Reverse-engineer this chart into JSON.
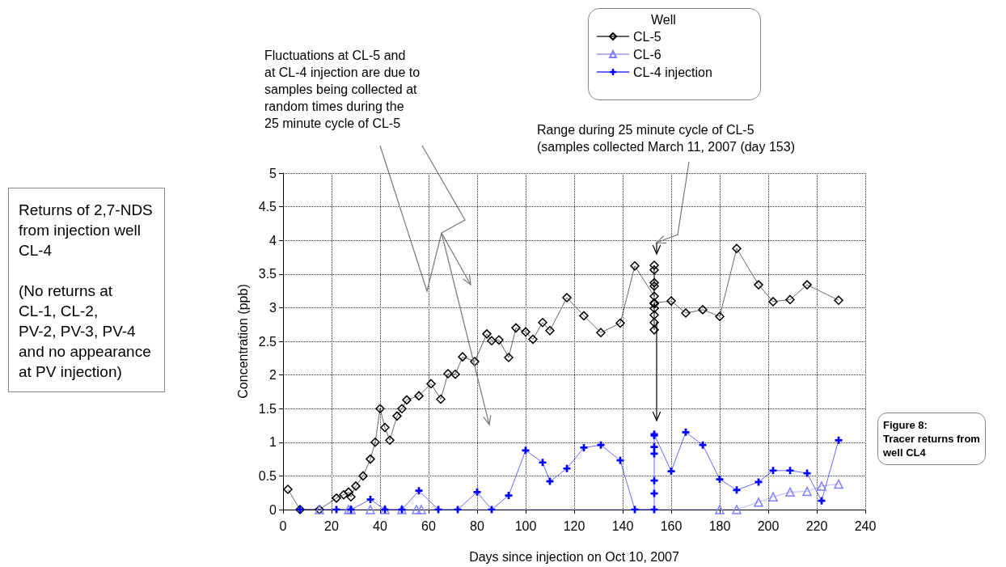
{
  "chart_data": {
    "type": "line",
    "xlabel": "Days since injection on Oct 10, 2007",
    "ylabel": "Concentration (ppb)",
    "legend_title": "Well",
    "legend": "top",
    "grid": true,
    "xlim": [
      0,
      240
    ],
    "xticks": [
      0,
      20,
      40,
      60,
      80,
      100,
      120,
      140,
      160,
      180,
      200,
      220,
      240
    ],
    "ylim": [
      0,
      5
    ],
    "yticks": [
      0,
      0.5,
      1,
      1.5,
      2,
      2.5,
      3,
      3.5,
      4,
      4.5,
      5
    ],
    "series": [
      {
        "name": "CL-5",
        "color": "#000000",
        "marker": "diamond",
        "x": [
          2,
          7,
          15,
          22,
          25,
          27,
          28,
          30,
          33,
          36,
          38,
          40,
          42,
          44,
          47,
          49,
          51,
          56,
          61,
          65,
          68,
          71,
          74,
          79,
          84,
          86,
          89,
          93,
          96,
          100,
          103,
          107,
          110,
          117,
          124,
          131,
          139,
          145,
          153,
          153,
          153,
          153,
          153,
          153,
          153,
          153,
          153,
          153,
          153,
          160,
          166,
          173,
          180,
          187,
          196,
          202,
          209,
          216,
          229
        ],
        "values": [
          0.3,
          0,
          0,
          0.17,
          0.22,
          0.26,
          0.19,
          0.35,
          0.5,
          0.75,
          1,
          1.5,
          1.22,
          1.03,
          1.39,
          1.5,
          1.63,
          1.69,
          1.87,
          1.64,
          2.02,
          2.01,
          2.27,
          2.2,
          2.61,
          2.51,
          2.52,
          2.26,
          2.7,
          2.64,
          2.53,
          2.78,
          2.66,
          3.15,
          2.88,
          2.63,
          2.77,
          3.62,
          3.17,
          3.63,
          3.56,
          3.37,
          3.32,
          2.67,
          2.78,
          2.89,
          2.99,
          3.06,
          3.07,
          3.1,
          2.92,
          2.97,
          2.87,
          3.88,
          3.34,
          3.09,
          3.12,
          3.34,
          3.11
        ]
      },
      {
        "name": "CL-6",
        "color": "#7f7fff",
        "marker": "triangle",
        "x": [
          15,
          27,
          28,
          36,
          42,
          49,
          55,
          57,
          180,
          187,
          196,
          202,
          209,
          216,
          222,
          229
        ],
        "values": [
          0,
          0,
          0,
          0,
          0,
          0,
          0,
          0,
          0,
          0,
          0.11,
          0.19,
          0.26,
          0.27,
          0.35,
          0.38
        ]
      },
      {
        "name": "CL-4 injection",
        "color": "#0000ff",
        "marker": "cross",
        "x": [
          7,
          22,
          28,
          36,
          42,
          49,
          56,
          64,
          72,
          80,
          86,
          93,
          100,
          107,
          110,
          117,
          124,
          131,
          139,
          145,
          153,
          153,
          153,
          153,
          153,
          153,
          153,
          160,
          166,
          173,
          180,
          187,
          196,
          202,
          209,
          216,
          222,
          229
        ],
        "values": [
          0,
          0,
          0,
          0.15,
          0,
          0,
          0.28,
          0,
          0,
          0.26,
          0,
          0.21,
          0.88,
          0.7,
          0.42,
          0.61,
          0.92,
          0.96,
          0.73,
          0,
          0,
          0.24,
          0.43,
          0.83,
          0.93,
          1.1,
          1.12,
          0.57,
          1.15,
          0.96,
          0.45,
          0.29,
          0.41,
          0.58,
          0.58,
          0.54,
          0.13,
          1.03
        ]
      }
    ],
    "annotations": [
      "Fluctuations at CL-5 and\nat CL-4 injection are due to\nsamples being collected at\nrandom times during the\n25 minute cycle of CL-5",
      "Range during 25 minute cycle of CL-5\n(samples collected March 11, 2007 (day 153)",
      "Returns of 2,7-NDS\nfrom injection well\nCL-4\n\n(No returns at\nCL-1, CL-2,\nPV-2, PV-3, PV-4\nand no appearance\nat PV injection)",
      "Figure 8:\nTracer returns from\nwell CL4"
    ]
  }
}
